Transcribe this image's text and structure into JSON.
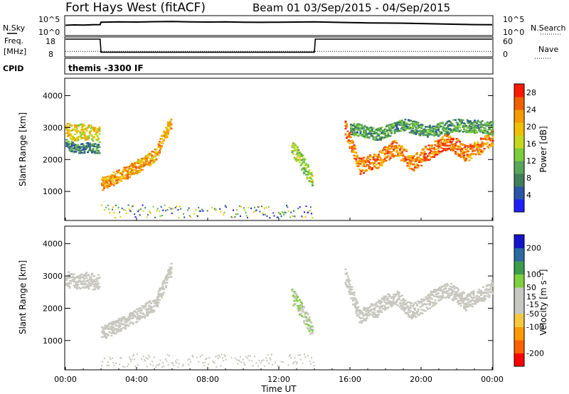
{
  "header": {
    "station": "Fort Hays West (fitACF)",
    "beam_date": "Beam 01  03/Sep/2015 - 04/Sep/2015",
    "cpid": "themis -3300 IF"
  },
  "colors": {
    "power_scale": [
      "#2020ff",
      "#2a55a8",
      "#3f7f5a",
      "#58a65a",
      "#7ccd3c",
      "#c8d820",
      "#f0c000",
      "#f59a00",
      "#f06000",
      "#ff1a00"
    ],
    "velocity_scale": [
      "#ff0000",
      "#ff6000",
      "#ff9a00",
      "#f5c840",
      "#c8c8c0",
      "#c8c8c0",
      "#7fd040",
      "#3c9c4c",
      "#2a6aa0",
      "#1414c8"
    ],
    "ground_scatter": "#c8c8c0"
  },
  "chart_data": [
    {
      "type": "line",
      "panel": "noise",
      "labels_left": [
        "N.Sky",
        "10^5",
        "10^0"
      ],
      "labels_right": [
        "10^5",
        "10^0",
        "N.Search"
      ],
      "series": [
        {
          "name": "N.Sky",
          "x": [
            0,
            0.5,
            1,
            1.5,
            1.95,
            2,
            3,
            4,
            5,
            6,
            7,
            8,
            9,
            10,
            11,
            12,
            13,
            14,
            15,
            16,
            17,
            18,
            19,
            20,
            21,
            22,
            23,
            24
          ],
          "values": [
            0.52,
            0.54,
            0.53,
            0.55,
            0.56,
            0.7,
            0.72,
            0.71,
            0.73,
            0.74,
            0.72,
            0.71,
            0.72,
            0.7,
            0.69,
            0.7,
            0.71,
            0.72,
            0.7,
            0.68,
            0.66,
            0.65,
            0.64,
            0.62,
            0.6,
            0.58,
            0.56,
            0.55
          ]
        }
      ]
    },
    {
      "type": "line",
      "panel": "frequency",
      "labels_left": [
        "Freq.",
        "[MHz]",
        "18",
        "8"
      ],
      "labels_right": [
        "60",
        "0",
        "Nave"
      ],
      "series": [
        {
          "name": "Freq.",
          "x": [
            0,
            1.95,
            2,
            14,
            14.05,
            24
          ],
          "values": [
            18,
            18,
            10,
            10,
            18,
            18
          ]
        },
        {
          "name": "Nave",
          "x": [
            0,
            24
          ],
          "values": [
            15,
            15
          ]
        }
      ]
    },
    {
      "type": "scatter",
      "panel": "power",
      "xlabel": "",
      "ylabel": "Slant Range [km]",
      "yticks": [
        "1000",
        "2000",
        "3000",
        "4000"
      ],
      "ylim": [
        180,
        4500
      ],
      "xlim": [
        0,
        24
      ],
      "colorbar": {
        "label": "Power [dB]",
        "ticks": [
          "4",
          "8",
          "12",
          "16",
          "20",
          "24",
          "28"
        ],
        "range": [
          0,
          30
        ]
      },
      "bands": [
        {
          "start": 0.0,
          "end": 1.9,
          "centers": [
            [
              0.0,
              2950
            ],
            [
              0.5,
              2850
            ],
            [
              1.0,
              2900
            ],
            [
              1.9,
              2800
            ]
          ],
          "width": 500,
          "power": 18
        },
        {
          "start": 0.0,
          "end": 1.9,
          "centers": [
            [
              0.0,
              2500
            ],
            [
              0.6,
              2350
            ],
            [
              1.2,
              2400
            ],
            [
              1.9,
              2350
            ]
          ],
          "width": 300,
          "power": 8
        },
        {
          "start": 2.0,
          "end": 5.9,
          "centers": [
            [
              2.0,
              1250
            ],
            [
              3.0,
              1500
            ],
            [
              4.0,
              1800
            ],
            [
              5.0,
              2150
            ],
            [
              5.9,
              3200
            ]
          ],
          "width": 420,
          "power": 22
        },
        {
          "start": 12.7,
          "end": 13.9,
          "centers": [
            [
              12.7,
              2400
            ],
            [
              13.2,
              2000
            ],
            [
              13.9,
              1300
            ]
          ],
          "width": 500,
          "power": 14
        },
        {
          "start": 15.7,
          "end": 24.0,
          "centers": [
            [
              15.7,
              3000
            ],
            [
              16.5,
              1800
            ],
            [
              17.5,
              2000
            ],
            [
              18.5,
              2400
            ],
            [
              19.5,
              1900
            ],
            [
              20.5,
              2300
            ],
            [
              21.5,
              2600
            ],
            [
              22.5,
              2200
            ],
            [
              23.5,
              2500
            ],
            [
              24.0,
              2700
            ]
          ],
          "width": 500,
          "power": 24
        },
        {
          "start": 16.0,
          "end": 24.0,
          "centers": [
            [
              16.0,
              3000
            ],
            [
              17.5,
              2800
            ],
            [
              19.0,
              3100
            ],
            [
              20.5,
              2900
            ],
            [
              22.0,
              3100
            ],
            [
              24.0,
              3000
            ]
          ],
          "width": 400,
          "power": 10
        }
      ],
      "ground": {
        "start": 2.0,
        "end": 14.0,
        "range": [
          200,
          600
        ],
        "power": 10
      }
    },
    {
      "type": "scatter",
      "panel": "velocity",
      "xlabel": "Time UT",
      "ylabel": "Slant Range [km]",
      "xticks": [
        "00:00",
        "04:00",
        "08:00",
        "12:00",
        "16:00",
        "20:00",
        "00:00"
      ],
      "yticks": [
        "1000",
        "2000",
        "3000",
        "4000"
      ],
      "ylim": [
        180,
        4500
      ],
      "xlim": [
        0,
        24
      ],
      "colorbar": {
        "label": "Velocity [m s⁻¹]",
        "ticks": [
          "200",
          "100",
          "50",
          "15",
          "-15",
          "-50",
          "-100",
          "-200"
        ],
        "range": [
          -250,
          250
        ]
      },
      "bands": [
        {
          "start": 0.0,
          "end": 1.9,
          "centers": [
            [
              0.0,
              2950
            ],
            [
              0.5,
              2850
            ],
            [
              1.0,
              2900
            ],
            [
              1.9,
              2800
            ]
          ],
          "width": 500,
          "velocity": 0
        },
        {
          "start": 2.0,
          "end": 5.9,
          "centers": [
            [
              2.0,
              1250
            ],
            [
              3.0,
              1500
            ],
            [
              4.0,
              1800
            ],
            [
              5.0,
              2150
            ],
            [
              5.9,
              3200
            ]
          ],
          "width": 420,
          "velocity": 0
        },
        {
          "start": 12.7,
          "end": 13.9,
          "centers": [
            [
              12.7,
              2400
            ],
            [
              13.2,
              2000
            ],
            [
              13.9,
              1300
            ]
          ],
          "width": 500,
          "velocity": 40
        },
        {
          "start": 15.7,
          "end": 24.0,
          "centers": [
            [
              15.7,
              3000
            ],
            [
              16.5,
              1800
            ],
            [
              17.5,
              2000
            ],
            [
              18.5,
              2400
            ],
            [
              19.5,
              1900
            ],
            [
              20.5,
              2300
            ],
            [
              21.5,
              2600
            ],
            [
              22.5,
              2200
            ],
            [
              23.5,
              2500
            ],
            [
              24.0,
              2700
            ]
          ],
          "width": 500,
          "velocity": 0
        }
      ],
      "ground": {
        "start": 2.0,
        "end": 14.0,
        "range": [
          200,
          600
        ],
        "velocity": -40
      }
    }
  ]
}
